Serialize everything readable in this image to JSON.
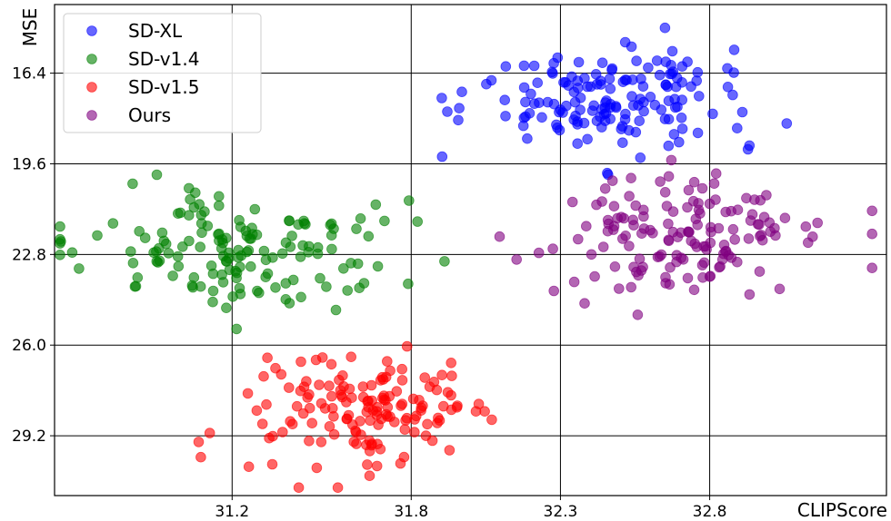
{
  "chart_data": {
    "type": "scatter",
    "title": "",
    "xlabel": "CLIPScore",
    "ylabel": "MSE",
    "x_ticks": [
      "31.2",
      "31.8",
      "32.3",
      "32.8"
    ],
    "y_ticks": [
      "16.4",
      "19.6",
      "22.8",
      "26.0",
      "29.2"
    ],
    "xlim": [
      30.6,
      33.2
    ],
    "ylim": [
      14.0,
      31.2
    ],
    "y_inverted": true,
    "grid": true,
    "legend_position": "top-left",
    "series": [
      {
        "name": "SD-XL",
        "color": "#0000ff",
        "center": [
          32.46,
          17.4
        ],
        "spread": [
          0.23,
          1.0
        ],
        "count": 160
      },
      {
        "name": "SD-v1.4",
        "color": "#008000",
        "center": [
          31.25,
          22.7
        ],
        "spread": [
          0.26,
          1.05
        ],
        "count": 150
      },
      {
        "name": "SD-v1.5",
        "color": "#ff0000",
        "center": [
          31.66,
          28.3
        ],
        "spread": [
          0.22,
          1.05
        ],
        "count": 150
      },
      {
        "name": "Ours",
        "color": "#800080",
        "center": [
          32.72,
          22.2
        ],
        "spread": [
          0.24,
          1.05
        ],
        "count": 150
      }
    ]
  }
}
